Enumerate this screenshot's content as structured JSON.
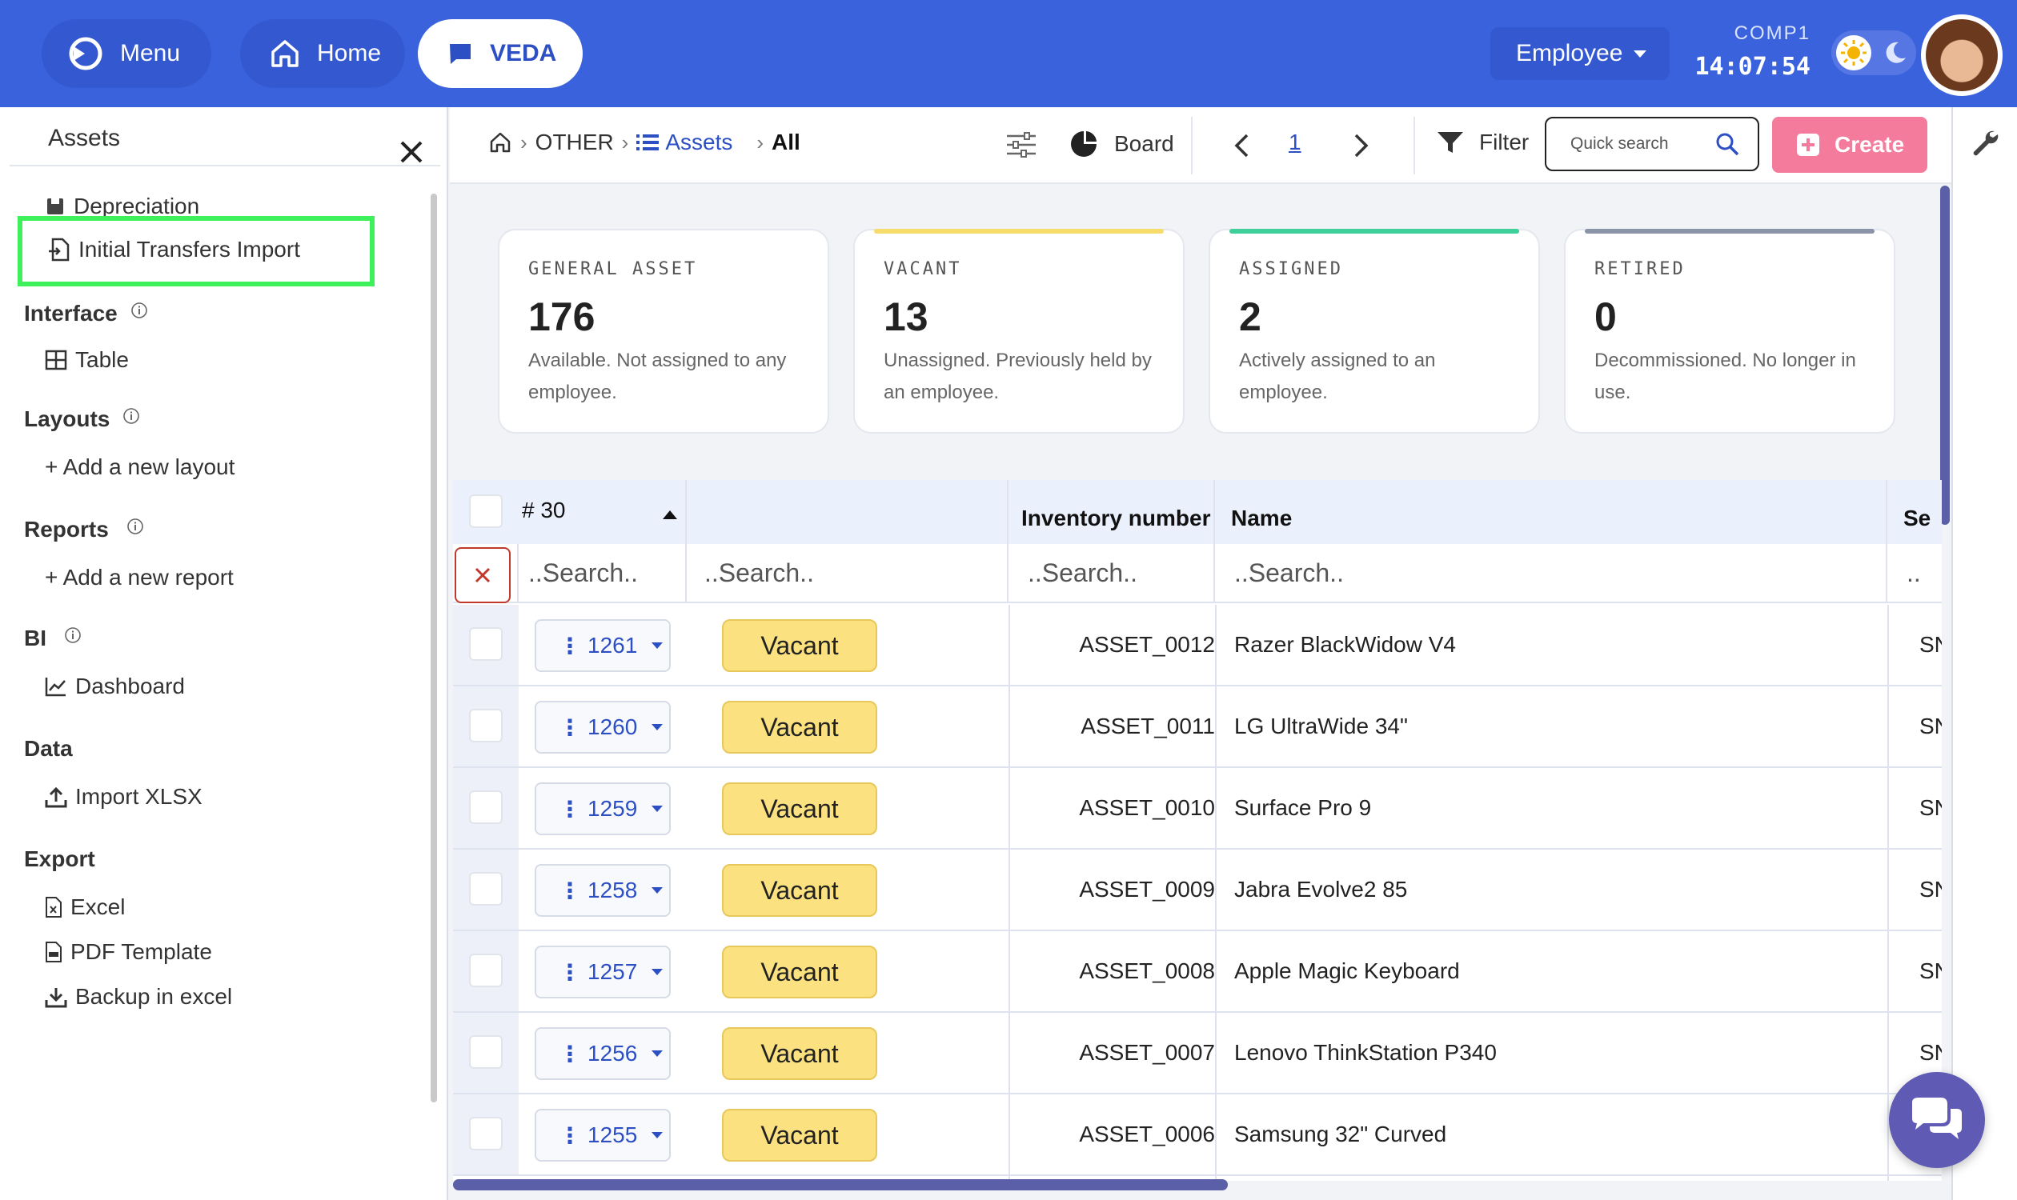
{
  "topbar": {
    "menu_label": "Menu",
    "home_label": "Home",
    "veda_label": "VEDA",
    "role_label": "Employee",
    "company": "COMP1",
    "time": "14:07:54"
  },
  "sidebar": {
    "title": "Assets",
    "items": {
      "depreciation": "Depreciation",
      "initial_transfers_import": "Initial Transfers Import",
      "interface": "Interface",
      "table": "Table",
      "layouts": "Layouts",
      "add_layout": "+ Add a new layout",
      "reports": "Reports",
      "add_report": "+ Add a new report",
      "bi": "BI",
      "dashboard": "Dashboard",
      "data": "Data",
      "import_xlsx": "Import XLSX",
      "export": "Export",
      "excel": "Excel",
      "pdf_template": "PDF Template",
      "backup_excel": "Backup in excel"
    }
  },
  "toolbar": {
    "crumb_other": "OTHER",
    "crumb_assets": "Assets",
    "crumb_all": "All",
    "board_label": "Board",
    "page": "1",
    "filter_label": "Filter",
    "search_placeholder": "Quick search",
    "create_label": "Create"
  },
  "cards": [
    {
      "label": "GENERAL ASSET",
      "value": "176",
      "desc": "Available. Not assigned to any employee.",
      "accent": "#e4e7ee"
    },
    {
      "label": "VACANT",
      "value": "13",
      "desc": "Unassigned. Previously held by an employee.",
      "accent": "#f5dc6b"
    },
    {
      "label": "ASSIGNED",
      "value": "2",
      "desc": "Actively assigned to an employee.",
      "accent": "#3fcf9b"
    },
    {
      "label": "RETIRED",
      "value": "0",
      "desc": "Decommissioned. No longer in use.",
      "accent": "#8a93a8"
    }
  ],
  "table": {
    "headers": {
      "id": "# 30",
      "status": "",
      "inventory": "Inventory number",
      "name": "Name",
      "serial": "Se"
    },
    "search_placeholder": "..Search..",
    "search_trunc": "..",
    "rows": [
      {
        "id": "1261",
        "status": "Vacant",
        "inventory": "ASSET_0012",
        "name": "Razer BlackWidow V4",
        "serial": "SN"
      },
      {
        "id": "1260",
        "status": "Vacant",
        "inventory": "ASSET_0011",
        "name": "LG UltraWide 34\"",
        "serial": "SN"
      },
      {
        "id": "1259",
        "status": "Vacant",
        "inventory": "ASSET_0010",
        "name": "Surface Pro 9",
        "serial": "SN"
      },
      {
        "id": "1258",
        "status": "Vacant",
        "inventory": "ASSET_0009",
        "name": "Jabra Evolve2 85",
        "serial": "SN"
      },
      {
        "id": "1257",
        "status": "Vacant",
        "inventory": "ASSET_0008",
        "name": "Apple Magic Keyboard",
        "serial": "SN"
      },
      {
        "id": "1256",
        "status": "Vacant",
        "inventory": "ASSET_0007",
        "name": "Lenovo ThinkStation P340",
        "serial": "SN"
      },
      {
        "id": "1255",
        "status": "Vacant",
        "inventory": "ASSET_0006",
        "name": "Samsung 32\" Curved",
        "serial": "SN"
      }
    ]
  },
  "colors": {
    "brand": "#3b62dd",
    "create": "#f47b9c",
    "vacant": "#fbe17f",
    "highlight": "#3ef05a"
  }
}
